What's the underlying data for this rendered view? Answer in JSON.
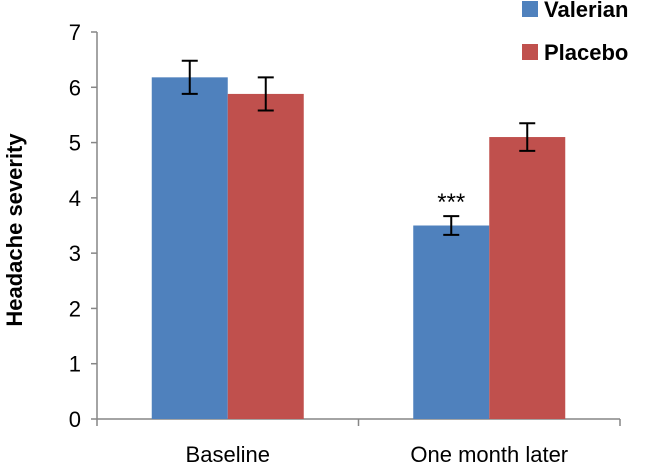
{
  "chart_data": {
    "type": "bar",
    "title": "",
    "xlabel": "",
    "ylabel": "Headache severity",
    "ylim": [
      0,
      7
    ],
    "yticks": [
      0,
      1,
      2,
      3,
      4,
      5,
      6,
      7
    ],
    "categories": [
      "Baseline",
      "One month later"
    ],
    "series": [
      {
        "name": "Valerian",
        "color": "#4f81bd",
        "values": [
          6.18,
          3.5
        ],
        "errors": [
          0.3,
          0.17
        ]
      },
      {
        "name": "Placebo",
        "color": "#c0504d",
        "values": [
          5.88,
          5.1
        ],
        "errors": [
          0.3,
          0.25
        ]
      }
    ],
    "legend_position": "top-right",
    "annotations": [
      {
        "text": "***",
        "category": "One month later",
        "series": "Valerian"
      }
    ]
  }
}
